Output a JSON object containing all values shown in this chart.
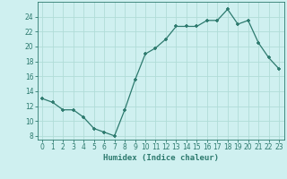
{
  "x": [
    0,
    1,
    2,
    3,
    4,
    5,
    6,
    7,
    8,
    9,
    10,
    11,
    12,
    13,
    14,
    15,
    16,
    17,
    18,
    19,
    20,
    21,
    22,
    23
  ],
  "y": [
    13,
    12.5,
    11.5,
    11.5,
    10.5,
    9,
    8.5,
    8,
    11.5,
    15.5,
    19,
    19.8,
    21,
    22.7,
    22.7,
    22.7,
    23.5,
    23.5,
    25,
    23,
    23.5,
    20.5,
    18.5,
    17
  ],
  "line_color": "#2d7a6e",
  "marker_color": "#2d7a6e",
  "bg_color": "#cff0f0",
  "grid_color": "#b0dcd8",
  "xlabel": "Humidex (Indice chaleur)",
  "xlim": [
    -0.5,
    23.5
  ],
  "ylim": [
    7.5,
    26
  ],
  "yticks": [
    8,
    10,
    12,
    14,
    16,
    18,
    20,
    22,
    24
  ],
  "xtick_labels": [
    "0",
    "1",
    "2",
    "3",
    "4",
    "5",
    "6",
    "7",
    "8",
    "9",
    "10",
    "11",
    "12",
    "13",
    "14",
    "15",
    "16",
    "17",
    "18",
    "19",
    "20",
    "21",
    "22",
    "23"
  ],
  "label_fontsize": 6.5,
  "tick_fontsize": 5.5
}
